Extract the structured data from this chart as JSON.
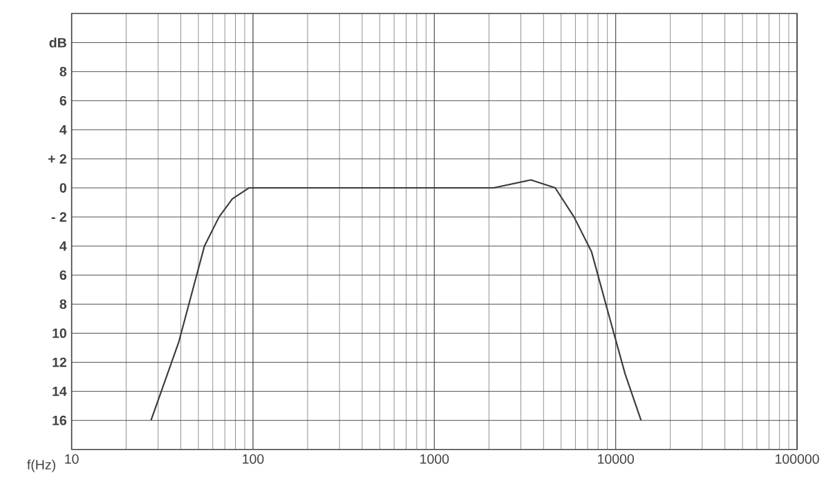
{
  "chart_data": {
    "type": "line",
    "xlabel": "f(Hz)",
    "log": "x",
    "grid": true,
    "marker": "none",
    "line_style": "solid",
    "xlim": [
      10,
      100000
    ],
    "ylim": [
      -18,
      12
    ],
    "xticks": [
      10,
      100,
      1000,
      10000,
      100000
    ],
    "yticks": [
      {
        "value": -16,
        "label": "16"
      },
      {
        "value": -14,
        "label": "14"
      },
      {
        "value": -12,
        "label": "12"
      },
      {
        "value": -10,
        "label": "10"
      },
      {
        "value": -8,
        "label": "8"
      },
      {
        "value": -6,
        "label": "6"
      },
      {
        "value": -4,
        "label": "4"
      },
      {
        "value": -2,
        "label": "- 2"
      },
      0,
      {
        "value": 2,
        "label": "+ 2"
      },
      4,
      6,
      8,
      {
        "value": 10,
        "label": "dB"
      }
    ],
    "series": [
      {
        "color": "#3a3a3a",
        "x": [
          27.4,
          39,
          54,
          65,
          77,
          95,
          500,
          1000,
          2120,
          3410,
          4640,
          5890,
          7360,
          9190,
          11270,
          13800
        ],
        "values": [
          -16,
          -10.6,
          -4,
          -2,
          -0.75,
          0,
          0,
          0,
          0,
          0.55,
          0,
          -2,
          -4.4,
          -8.8,
          -12.8,
          -16
        ]
      }
    ]
  }
}
